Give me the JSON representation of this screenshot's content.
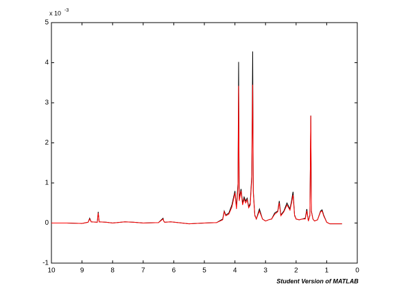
{
  "chart_data": {
    "type": "line",
    "exponent_base": "x 10",
    "exponent_power": "-3",
    "footer": "Student Version of MATLAB",
    "x": [
      10,
      9.5,
      9,
      8.8,
      8.75,
      8.7,
      8.5,
      8.47,
      8.44,
      8.2,
      8.0,
      7.6,
      7.3,
      7.0,
      6.5,
      6.35,
      6.33,
      6.3,
      6.1,
      5.5,
      5.0,
      4.6,
      4.4,
      4.35,
      4.3,
      4.2,
      4.1,
      4.0,
      3.95,
      3.9,
      3.88,
      3.86,
      3.8,
      3.75,
      3.7,
      3.65,
      3.6,
      3.55,
      3.5,
      3.45,
      3.42,
      3.4,
      3.35,
      3.3,
      3.2,
      3.1,
      3.0,
      2.9,
      2.8,
      2.7,
      2.6,
      2.55,
      2.5,
      2.4,
      2.3,
      2.2,
      2.15,
      2.1,
      2.05,
      2.0,
      1.9,
      1.8,
      1.7,
      1.65,
      1.6,
      1.55,
      1.52,
      1.5,
      1.45,
      1.4,
      1.3,
      1.2,
      1.15,
      1.1,
      1.0,
      0.9,
      0.8,
      0.7,
      0.5
    ],
    "series": [
      {
        "color": "#000000",
        "values": [
          0,
          0,
          -0.01,
          0.02,
          0.12,
          0.03,
          0.02,
          0.28,
          0.03,
          0.02,
          0,
          0.03,
          0.02,
          0,
          0.01,
          0.12,
          0.05,
          0.02,
          0.03,
          -0.02,
          0,
          0.01,
          0.1,
          0.3,
          0.2,
          0.25,
          0.45,
          0.8,
          0.4,
          1.0,
          4.02,
          0.6,
          0.85,
          0.5,
          0.65,
          0.55,
          0.62,
          0.4,
          0.5,
          1.2,
          4.28,
          0.8,
          0.2,
          0.1,
          0.35,
          0.1,
          0.05,
          0.08,
          0.1,
          0.25,
          0.3,
          0.55,
          0.2,
          0.3,
          0.5,
          0.35,
          0.55,
          0.78,
          0.2,
          0.1,
          0.08,
          0.1,
          0.12,
          0.35,
          0.05,
          0.2,
          2.68,
          0.3,
          0.1,
          0.05,
          0.08,
          0.3,
          0.33,
          0.2,
          0.02,
          -0.02,
          -0.02,
          -0.02,
          -0.02
        ]
      },
      {
        "color": "#ff0000",
        "values": [
          0,
          0,
          -0.01,
          0.02,
          0.1,
          0.03,
          0.02,
          0.25,
          0.03,
          0.02,
          0,
          0.03,
          0.02,
          0,
          0.01,
          0.1,
          0.05,
          0.02,
          0.03,
          -0.02,
          0,
          0.01,
          0.08,
          0.28,
          0.18,
          0.22,
          0.4,
          0.75,
          0.35,
          0.9,
          3.42,
          0.55,
          0.8,
          0.45,
          0.6,
          0.5,
          0.58,
          0.38,
          0.45,
          1.1,
          3.45,
          0.75,
          0.18,
          0.1,
          0.3,
          0.1,
          0.05,
          0.08,
          0.1,
          0.22,
          0.28,
          0.5,
          0.18,
          0.28,
          0.45,
          0.32,
          0.5,
          0.7,
          0.18,
          0.1,
          0.08,
          0.1,
          0.1,
          0.3,
          0.05,
          0.18,
          2.68,
          0.28,
          0.1,
          0.05,
          0.08,
          0.28,
          0.3,
          0.18,
          0.02,
          -0.02,
          -0.02,
          -0.02,
          -0.02
        ]
      }
    ],
    "xlim": [
      10,
      0
    ],
    "ylim": [
      -1,
      5
    ],
    "xticks": [
      10,
      9,
      8,
      7,
      6,
      5,
      4,
      3,
      2,
      1,
      0
    ],
    "yticks": [
      -1,
      0,
      1,
      2,
      3,
      4,
      5
    ]
  }
}
